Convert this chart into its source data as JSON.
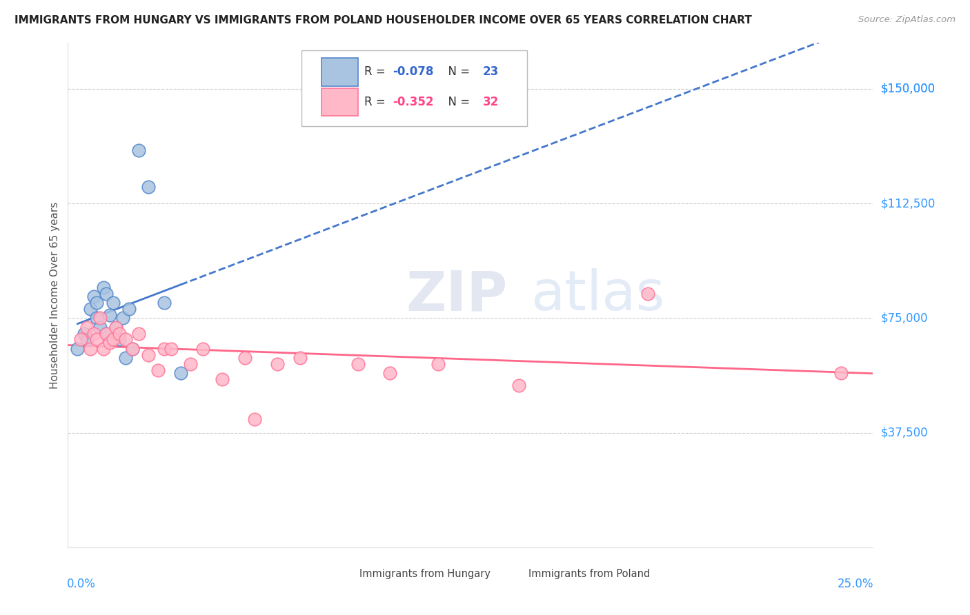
{
  "title": "IMMIGRANTS FROM HUNGARY VS IMMIGRANTS FROM POLAND HOUSEHOLDER INCOME OVER 65 YEARS CORRELATION CHART",
  "source": "Source: ZipAtlas.com",
  "ylabel": "Householder Income Over 65 years",
  "ytick_labels": [
    "$150,000",
    "$112,500",
    "$75,000",
    "$37,500"
  ],
  "ytick_values": [
    150000,
    112500,
    75000,
    37500
  ],
  "ylim": [
    0,
    165000
  ],
  "xlim": [
    0.0,
    0.25
  ],
  "watermark_zip": "ZIP",
  "watermark_atlas": "atlas",
  "legend_hungary_R": "-0.078",
  "legend_hungary_N": "23",
  "legend_poland_R": "-0.352",
  "legend_poland_N": "32",
  "color_hungary_fill": "#A8C4E0",
  "color_hungary_edge": "#5588CC",
  "color_hungary_line": "#4477CC",
  "color_poland_fill": "#FFB8C8",
  "color_poland_edge": "#FF7799",
  "color_poland_line": "#FF6688",
  "hungary_x": [
    0.003,
    0.005,
    0.006,
    0.007,
    0.008,
    0.009,
    0.009,
    0.01,
    0.011,
    0.012,
    0.012,
    0.013,
    0.014,
    0.015,
    0.016,
    0.017,
    0.018,
    0.019,
    0.02,
    0.022,
    0.025,
    0.03,
    0.035
  ],
  "hungary_y": [
    65000,
    70000,
    68000,
    78000,
    82000,
    75000,
    80000,
    72000,
    85000,
    83000,
    70000,
    76000,
    80000,
    72000,
    68000,
    75000,
    62000,
    78000,
    65000,
    130000,
    118000,
    80000,
    57000
  ],
  "poland_x": [
    0.004,
    0.006,
    0.007,
    0.008,
    0.009,
    0.01,
    0.011,
    0.012,
    0.013,
    0.014,
    0.015,
    0.016,
    0.018,
    0.02,
    0.022,
    0.025,
    0.028,
    0.03,
    0.032,
    0.038,
    0.042,
    0.048,
    0.055,
    0.058,
    0.065,
    0.072,
    0.09,
    0.1,
    0.115,
    0.14,
    0.18,
    0.24
  ],
  "poland_y": [
    68000,
    72000,
    65000,
    70000,
    68000,
    75000,
    65000,
    70000,
    67000,
    68000,
    72000,
    70000,
    68000,
    65000,
    70000,
    63000,
    58000,
    65000,
    65000,
    60000,
    65000,
    55000,
    62000,
    42000,
    60000,
    62000,
    60000,
    57000,
    60000,
    53000,
    83000,
    57000
  ]
}
